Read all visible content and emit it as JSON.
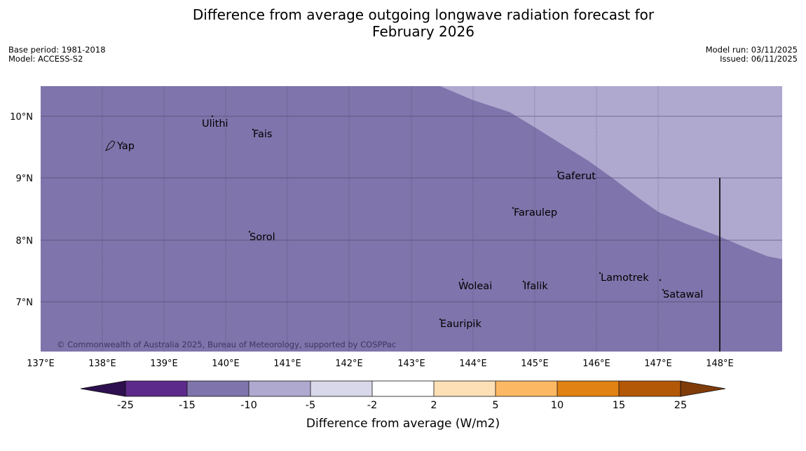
{
  "title": {
    "line1": "Difference from average outgoing longwave radiation forecast for",
    "line2": "February 2026"
  },
  "meta": {
    "base_period": "Base period: 1981-2018",
    "model": "Model: ACCESS-S2",
    "model_run": "Model run: 03/11/2025",
    "issued": "Issued: 06/11/2025"
  },
  "map": {
    "lon_labels": [
      "137°E",
      "138°E",
      "139°E",
      "140°E",
      "141°E",
      "142°E",
      "143°E",
      "144°E",
      "145°E",
      "146°E",
      "147°E",
      "148°E"
    ],
    "lat_labels": [
      "10°N",
      "9°N",
      "8°N",
      "7°N"
    ],
    "places": [
      "Yap",
      "Ulithi",
      "Fais",
      "Gaferut",
      "Faraulep",
      "Sorol",
      "Woleai",
      "Ifalik",
      "Lamotrek",
      "Satawal",
      "Eauripik"
    ],
    "copyright": "© Commonwealth of Australia 2025, Bureau of Meteorology, supported by COSPPac",
    "fill_colors": {
      "strong_negative": "#7f74ab",
      "weak_negative": "#afa9d0"
    }
  },
  "colorbar": {
    "ticks": [
      "-25",
      "-15",
      "-10",
      "-5",
      "-2",
      "2",
      "5",
      "10",
      "15",
      "25"
    ],
    "colors": [
      "#2e1050",
      "#5c2a8a",
      "#7f74ab",
      "#afa9d0",
      "#d8d8ea",
      "#ffffff",
      "#fee0b6",
      "#fdb863",
      "#e08214",
      "#b35806",
      "#7f3b08"
    ],
    "label": "Difference from average (W/m2)"
  }
}
